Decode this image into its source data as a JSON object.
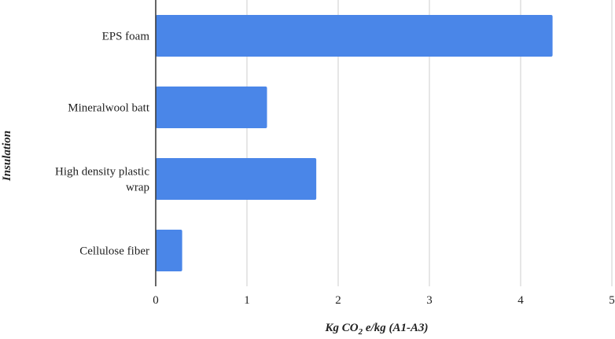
{
  "chart_data": {
    "type": "bar",
    "orientation": "horizontal",
    "categories": [
      "EPS foam",
      "Mineralwool batt",
      "High density plastic wrap",
      "Cellulose fiber"
    ],
    "category_lines": [
      [
        "EPS foam"
      ],
      [
        "Mineralwool batt"
      ],
      [
        "High density plastic",
        "wrap"
      ],
      [
        "Cellulose fiber"
      ]
    ],
    "values": [
      4.35,
      1.22,
      1.76,
      0.29
    ],
    "xlim": [
      0,
      5
    ],
    "x_ticks": [
      "0",
      "1",
      "2",
      "3",
      "4",
      "5"
    ],
    "xlabel": {
      "prefix": "Kg CO",
      "subscript": "2",
      "suffix": " e/kg (A1-A3)"
    },
    "ylabel": "Insulation",
    "grid": "vertical",
    "legend": "none",
    "bar_color": "#4a86e8",
    "grid_color": "#cccccc",
    "axis_color": "#333333"
  }
}
